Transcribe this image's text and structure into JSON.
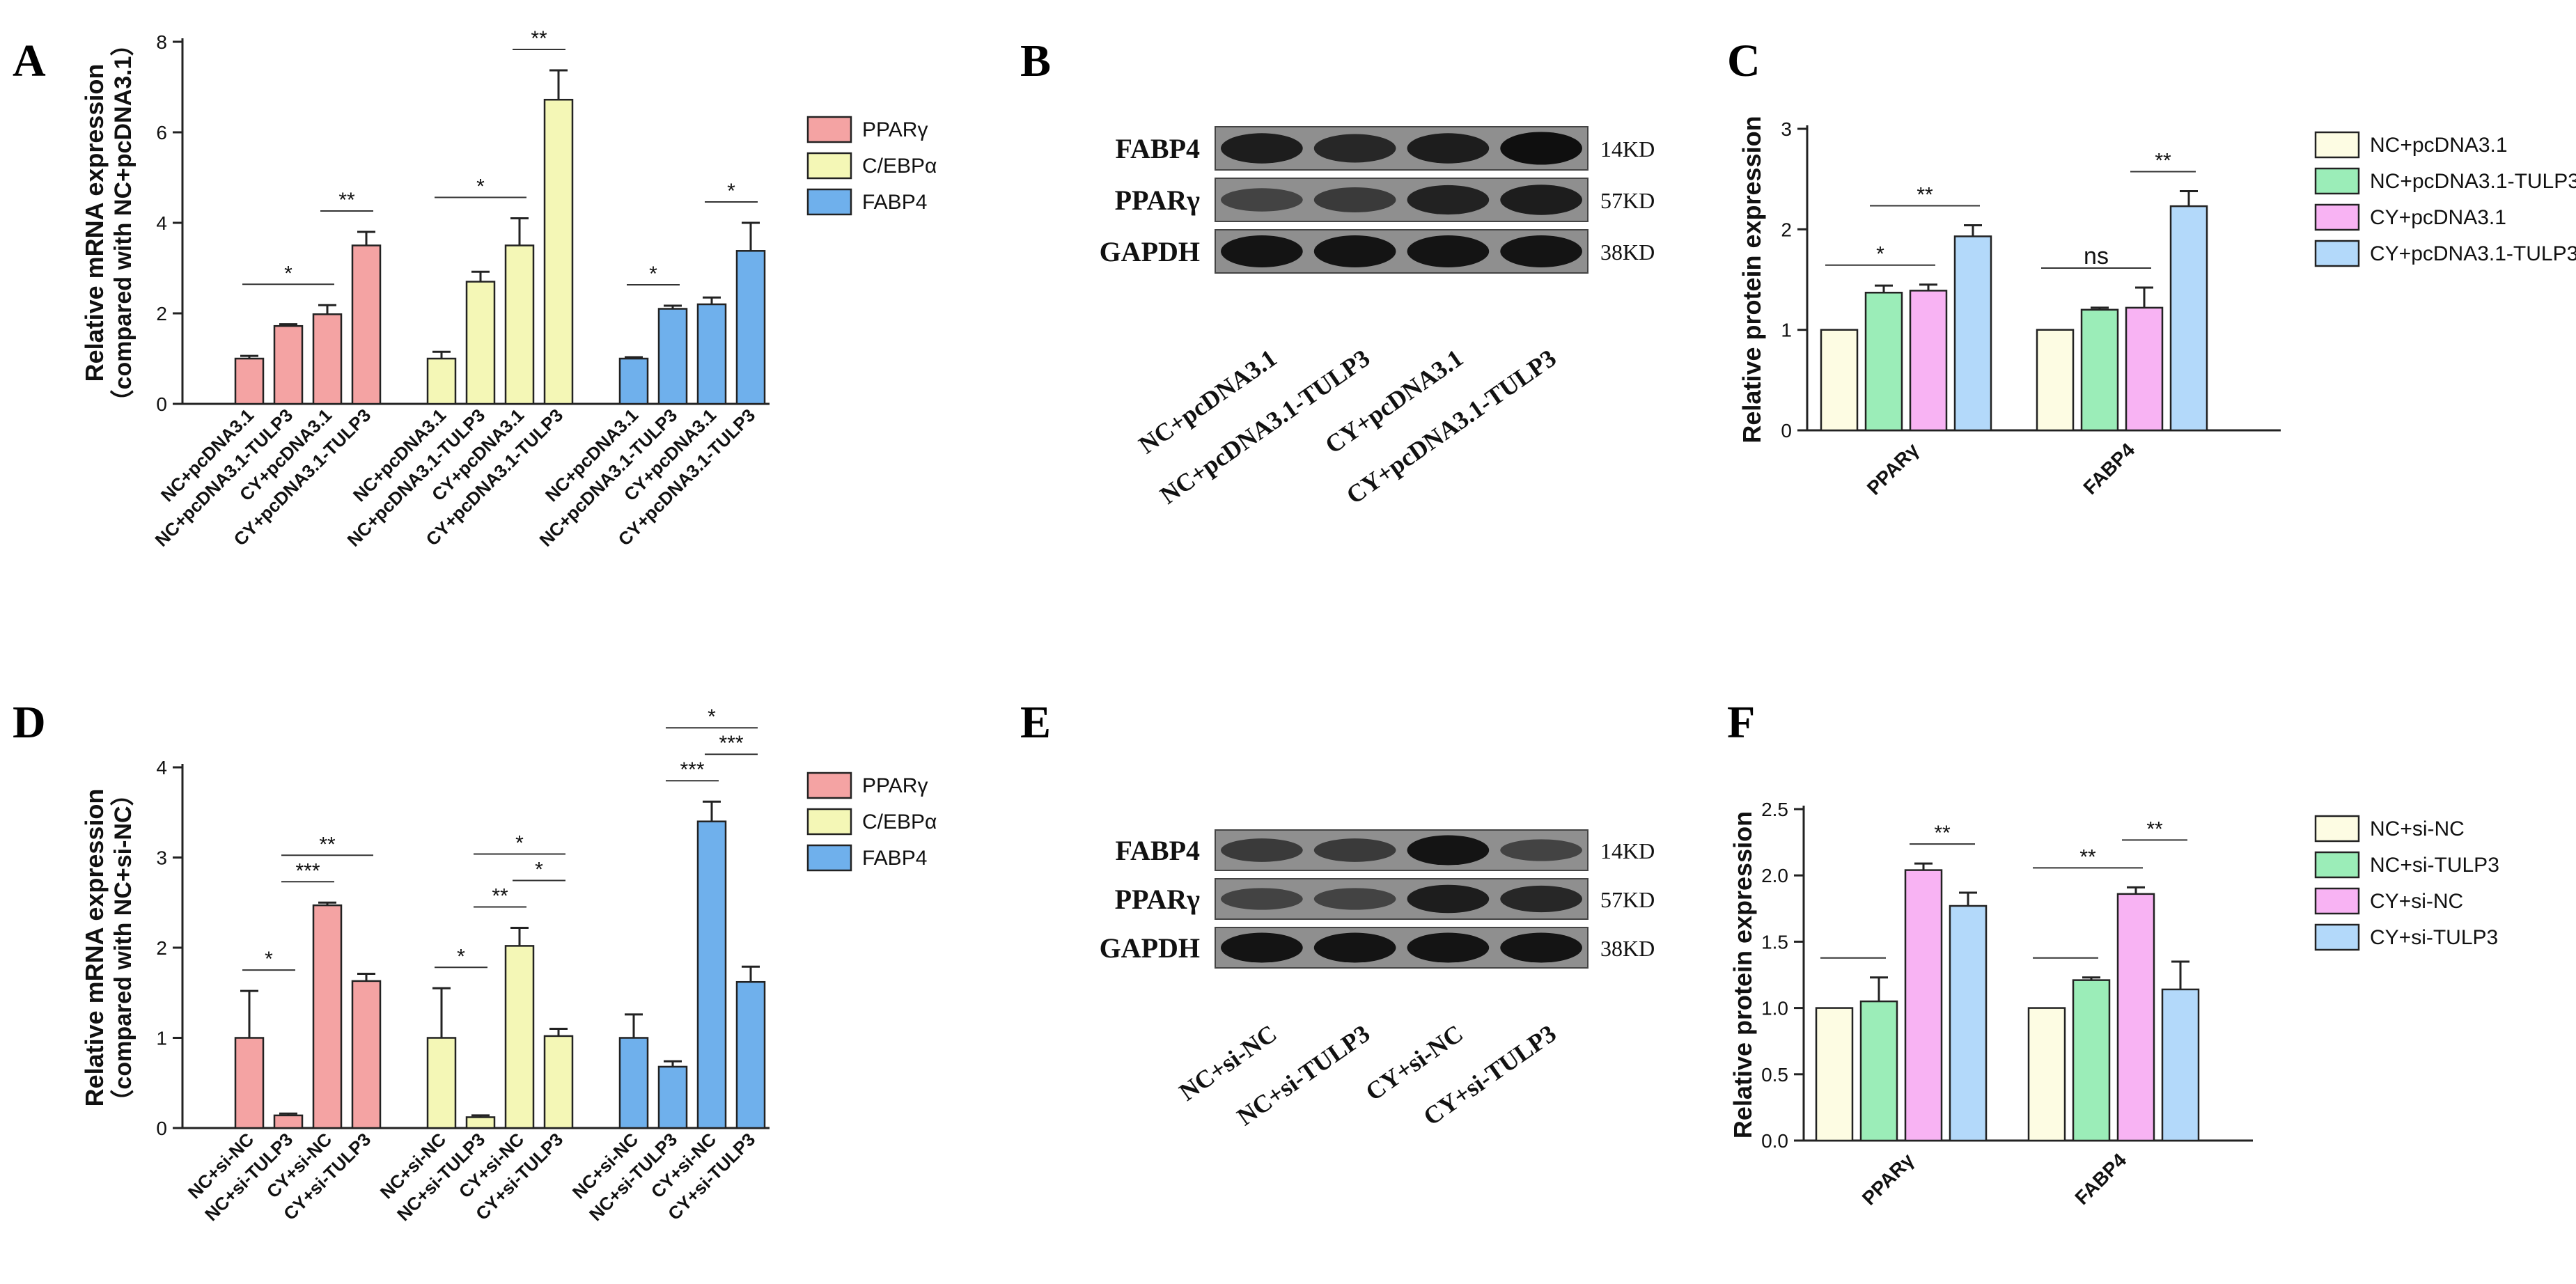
{
  "panels": {
    "A": {
      "letter": "A"
    },
    "B": {
      "letter": "B"
    },
    "C": {
      "letter": "C"
    },
    "D": {
      "letter": "D"
    },
    "E": {
      "letter": "E"
    },
    "F": {
      "letter": "F"
    }
  },
  "colors": {
    "red": "#F4A3A3",
    "yellow": "#F4F7B6",
    "blue": "#6FB0EC",
    "cream": "#FDFCE3",
    "green": "#9BEDB8",
    "pink": "#F8B3F3",
    "lightblue": "#B3D9FA"
  },
  "chart_data": [
    {
      "id": "A",
      "type": "bar",
      "ylabel": "Relative mRNA expression",
      "ylabel2": "（compared with NC+pcDNA3.1）",
      "ylim": [
        0,
        8
      ],
      "yticks": [
        0,
        2,
        4,
        6,
        8
      ],
      "categories": [
        "NC+pcDNA3.1",
        "NC+pcDNA3.1-TULP3",
        "CY+pcDNA3.1",
        "CY+pcDNA3.1-TULP3"
      ],
      "series": [
        {
          "name": "PPARγ",
          "color": "red",
          "values": [
            1.0,
            1.72,
            1.98,
            3.5
          ],
          "errors": [
            0.06,
            0.04,
            0.2,
            0.3
          ]
        },
        {
          "name": "C/EBPα",
          "color": "yellow",
          "values": [
            1.0,
            2.7,
            3.5,
            6.72
          ],
          "errors": [
            0.15,
            0.22,
            0.6,
            0.65
          ]
        },
        {
          "name": "FABP4",
          "color": "blue",
          "values": [
            1.0,
            2.1,
            2.2,
            3.38
          ],
          "errors": [
            0.03,
            0.07,
            0.15,
            0.62
          ]
        }
      ],
      "annotations": [
        {
          "series": 0,
          "from": 0,
          "to": 2,
          "text": "*"
        },
        {
          "series": 0,
          "from": 2,
          "to": 3,
          "text": "**"
        },
        {
          "series": 1,
          "from": 0,
          "to": 2,
          "text": "*"
        },
        {
          "series": 1,
          "from": 2,
          "to": 3,
          "text": "**"
        },
        {
          "series": 2,
          "from": 0,
          "to": 1,
          "text": "*"
        },
        {
          "series": 2,
          "from": 2,
          "to": 3,
          "text": "*"
        }
      ]
    },
    {
      "id": "C",
      "type": "bar",
      "ylabel": "Relative  protein expression",
      "ylim": [
        0,
        3
      ],
      "yticks": [
        0,
        1,
        2,
        3
      ],
      "categories": [
        "PPARγ",
        "FABP4"
      ],
      "legend": [
        {
          "name": "NC+pcDNA3.1",
          "color": "cream"
        },
        {
          "name": "NC+pcDNA3.1-TULP3",
          "color": "green"
        },
        {
          "name": "CY+pcDNA3.1",
          "color": "pink"
        },
        {
          "name": "CY+pcDNA3.1-TULP3",
          "color": "lightblue"
        }
      ],
      "groups": [
        {
          "values": [
            1.0,
            1.37,
            1.39,
            1.93
          ],
          "errors": [
            0,
            0.07,
            0.06,
            0.11
          ]
        },
        {
          "values": [
            1.0,
            1.2,
            1.22,
            2.23
          ],
          "errors": [
            0,
            0.02,
            0.2,
            0.15
          ]
        }
      ],
      "annotations": [
        {
          "group": 0,
          "from": 0,
          "to": 2,
          "text": "*"
        },
        {
          "group": 0,
          "from": 1,
          "to": 3,
          "text": "**"
        },
        {
          "group": 1,
          "from": 0,
          "to": 2,
          "text": "ns"
        },
        {
          "group": 1,
          "from": 2,
          "to": 3,
          "text": "**"
        }
      ]
    },
    {
      "id": "D",
      "type": "bar",
      "ylabel": "Relative mRNA expression",
      "ylabel2": "（compared with NC+si-NC）",
      "ylim": [
        0,
        4
      ],
      "yticks": [
        0,
        1,
        2,
        3,
        4
      ],
      "categories": [
        "NC+si-NC",
        "NC+si-TULP3",
        "CY+si-NC",
        "CY+si-TULP3"
      ],
      "series": [
        {
          "name": "PPARγ",
          "color": "red",
          "values": [
            1.0,
            0.14,
            2.47,
            1.63
          ],
          "errors": [
            0.52,
            0.02,
            0.03,
            0.08
          ]
        },
        {
          "name": "C/EBPα",
          "color": "yellow",
          "values": [
            1.0,
            0.12,
            2.02,
            1.02
          ],
          "errors": [
            0.55,
            0.02,
            0.2,
            0.08
          ]
        },
        {
          "name": "FABP4",
          "color": "blue",
          "values": [
            1.0,
            0.68,
            3.4,
            1.62
          ],
          "errors": [
            0.26,
            0.06,
            0.22,
            0.17
          ]
        }
      ],
      "annotations": [
        {
          "series": 0,
          "from": 0,
          "to": 1,
          "text": "*"
        },
        {
          "series": 0,
          "from": 1,
          "to": 2,
          "text": "***"
        },
        {
          "series": 0,
          "from": 1,
          "to": 3,
          "text": "**"
        },
        {
          "series": 1,
          "from": 0,
          "to": 1,
          "text": "*"
        },
        {
          "series": 1,
          "from": 1,
          "to": 2,
          "text": "**"
        },
        {
          "series": 1,
          "from": 2,
          "to": 3,
          "text": "*"
        },
        {
          "series": 1,
          "from": 1,
          "to": 3,
          "text": "*"
        },
        {
          "series": 2,
          "from": 1,
          "to": 2,
          "text": "***"
        },
        {
          "series": 2,
          "from": 2,
          "to": 3,
          "text": "***"
        },
        {
          "series": 2,
          "from": 1,
          "to": 3,
          "text": "*"
        }
      ]
    },
    {
      "id": "F",
      "type": "bar",
      "ylabel": "Relative  protein expression",
      "ylim": [
        0,
        2.5
      ],
      "yticks": [
        "0.0",
        "0.5",
        "1.0",
        "1.5",
        "2.0",
        "2.5"
      ],
      "categories": [
        "PPARγ",
        "FABP4"
      ],
      "legend": [
        {
          "name": "NC+si-NC",
          "color": "cream"
        },
        {
          "name": "NC+si-TULP3",
          "color": "green"
        },
        {
          "name": "CY+si-NC",
          "color": "pink"
        },
        {
          "name": "CY+si-TULP3",
          "color": "lightblue"
        }
      ],
      "groups": [
        {
          "values": [
            1.0,
            1.05,
            2.04,
            1.77
          ],
          "errors": [
            0,
            0.18,
            0.05,
            0.1
          ]
        },
        {
          "values": [
            1.0,
            1.21,
            1.86,
            1.14
          ],
          "errors": [
            0,
            0.02,
            0.05,
            0.21
          ]
        }
      ],
      "annotations": [
        {
          "group": 0,
          "from": 0,
          "to": 1,
          "text": ""
        },
        {
          "group": 0,
          "from": 2,
          "to": 3,
          "text": "**"
        },
        {
          "group": 1,
          "from": 0,
          "to": 1,
          "text": ""
        },
        {
          "group": 1,
          "from": 0,
          "to": 2,
          "text": "**"
        },
        {
          "group": 1,
          "from": 2,
          "to": 3,
          "text": "**"
        }
      ]
    }
  ],
  "blots": {
    "B": {
      "rows": [
        {
          "protein": "FABP4",
          "size": "14KD"
        },
        {
          "protein": "PPARγ",
          "size": "57KD"
        },
        {
          "protein": "GAPDH",
          "size": "38KD"
        }
      ],
      "lanes": [
        "NC+pcDNA3.1",
        "NC+pcDNA3.1-TULP3",
        "CY+pcDNA3.1",
        "CY+pcDNA3.1-TULP3"
      ],
      "intensity": [
        [
          0.85,
          0.75,
          0.85,
          1.0
        ],
        [
          0.45,
          0.55,
          0.8,
          0.85
        ],
        [
          0.95,
          0.95,
          0.95,
          0.95
        ]
      ]
    },
    "E": {
      "rows": [
        {
          "protein": "FABP4",
          "size": "14KD"
        },
        {
          "protein": "PPARγ",
          "size": "57KD"
        },
        {
          "protein": "GAPDH",
          "size": "38KD"
        }
      ],
      "lanes": [
        "NC+si-NC",
        "NC+si-TULP3",
        "CY+si-NC",
        "CY+si-TULP3"
      ],
      "intensity": [
        [
          0.55,
          0.55,
          0.95,
          0.45
        ],
        [
          0.45,
          0.45,
          0.85,
          0.75
        ],
        [
          0.95,
          0.95,
          0.95,
          0.95
        ]
      ]
    }
  }
}
